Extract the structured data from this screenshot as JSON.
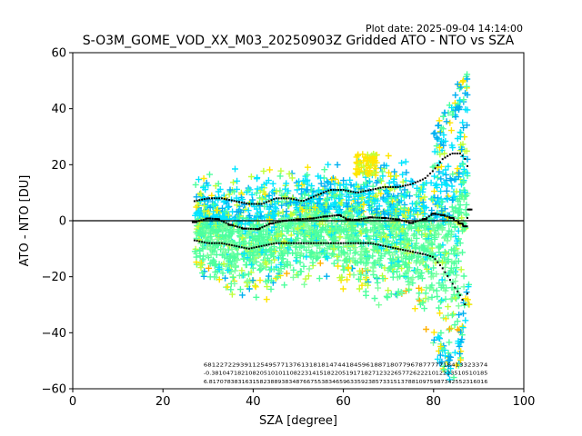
{
  "chart_data": {
    "type": "scatter",
    "plot_date_label": "Plot date: 2025-09-04 14:14:00",
    "title": "S-O3M_GOME_VOD_XX_M03_20250903Z Gridded ATO - NTO vs SZA",
    "xlabel": "SZA [degree]",
    "ylabel": "ATO - NTO [DU]",
    "xlim": [
      0,
      100
    ],
    "ylim": [
      -60,
      60
    ],
    "xticks": [
      "0",
      "20",
      "40",
      "60",
      "80",
      "100"
    ],
    "yticks": [
      "60",
      "40",
      "20",
      "0",
      "−20",
      "−40",
      "−60"
    ],
    "zero_line": 0,
    "marker": "+",
    "colors": {
      "cyan": "#00e5ff",
      "azure": "#00b0f0",
      "seagreen": "#4dff9e",
      "mint": "#7dffa0",
      "lime": "#c0ff3a",
      "yellow": "#ffe600",
      "orange": "#ffb000",
      "mean": "#000000"
    },
    "scatter_envelope": {
      "x": [
        27,
        30,
        35,
        40,
        45,
        50,
        55,
        60,
        65,
        70,
        75,
        78,
        80,
        82,
        84,
        86,
        87.5
      ],
      "upper": [
        18,
        20,
        20,
        22,
        23,
        22,
        24,
        24,
        25,
        26,
        27,
        30,
        33,
        38,
        45,
        52,
        56
      ],
      "lower": [
        -22,
        -26,
        -30,
        -33,
        -30,
        -26,
        -26,
        -27,
        -30,
        -33,
        -36,
        -40,
        -48,
        -54,
        -58,
        -50,
        -30
      ]
    },
    "mean_line": {
      "x": [
        27,
        30,
        32,
        35,
        38,
        41,
        44,
        47,
        50,
        53,
        56,
        59,
        61,
        63,
        66,
        69,
        72,
        75,
        78,
        80,
        82,
        84,
        86,
        87,
        88
      ],
      "y": [
        -0.5,
        0.8,
        0.6,
        -1.5,
        -2.8,
        -3.0,
        -1.0,
        0.0,
        0.5,
        0.8,
        1.5,
        2.0,
        0.5,
        0.3,
        1.2,
        1.0,
        0.5,
        -0.8,
        0.6,
        2.5,
        2.0,
        1.0,
        -1.0,
        -2.0,
        4.0
      ]
    },
    "upper_std_line": {
      "x": [
        27,
        30,
        33,
        36,
        39,
        42,
        45,
        48,
        51,
        54,
        57,
        60,
        63,
        66,
        69,
        72,
        75,
        78,
        80,
        82,
        84,
        86,
        87,
        88
      ],
      "y": [
        7,
        8,
        8,
        7,
        6,
        6,
        8,
        8,
        7,
        9,
        11,
        11,
        10,
        11,
        12,
        12,
        13,
        15,
        18,
        22,
        24,
        24,
        22,
        17
      ]
    },
    "lower_std_line": {
      "x": [
        27,
        30,
        33,
        36,
        39,
        42,
        45,
        48,
        51,
        54,
        57,
        60,
        63,
        66,
        69,
        72,
        75,
        78,
        80,
        82,
        84,
        86,
        87,
        88
      ],
      "y": [
        -7,
        -8,
        -8,
        -9,
        -10,
        -9,
        -8,
        -8,
        -8,
        -8,
        -8,
        -8,
        -8,
        -8,
        -9,
        -10,
        -11,
        -12,
        -13,
        -17,
        -22,
        -27,
        -30,
        -22
      ]
    },
    "counts_annotation": {
      "rows": [
        "6812272293911254957713761318181474418459618871807796787777718413323374",
        "-0.38104718210820510101108223141518220519171827123226577262221012223510510185",
        "6.81707838316315823889383487667553834659633592385733151378810975987342552316016"
      ],
      "x_start": 29,
      "x_end": 92
    }
  }
}
